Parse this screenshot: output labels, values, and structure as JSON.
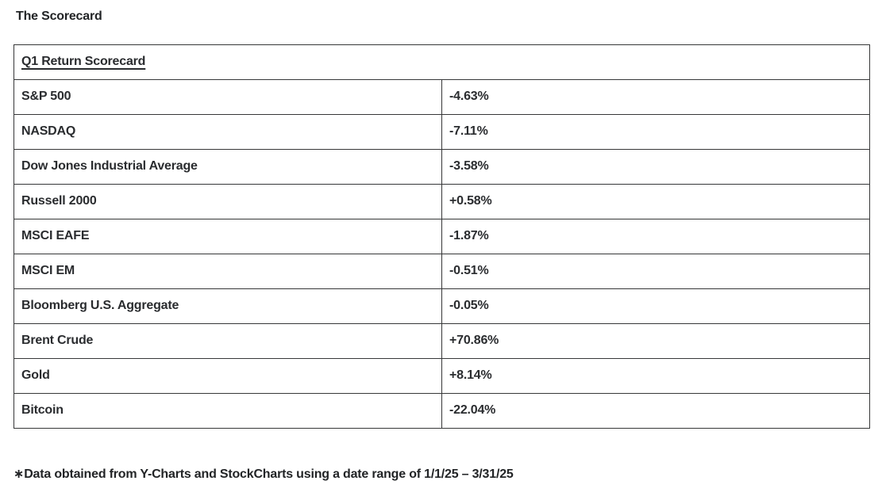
{
  "page": {
    "title": "The Scorecard"
  },
  "table": {
    "header": "Q1 Return Scorecard",
    "rows": [
      {
        "label": "S&P 500",
        "value": "-4.63%"
      },
      {
        "label": "NASDAQ",
        "value": "-7.11%"
      },
      {
        "label": "Dow Jones Industrial Average",
        "value": "-3.58%"
      },
      {
        "label": "Russell 2000",
        "value": "+0.58%"
      },
      {
        "label": "MSCI EAFE",
        "value": "-1.87%"
      },
      {
        "label": "MSCI EM",
        "value": "-0.51%"
      },
      {
        "label": "Bloomberg U.S. Aggregate",
        "value": "-0.05%"
      },
      {
        "label": "Brent Crude",
        "value": "+70.86%"
      },
      {
        "label": "Gold",
        "value": "+8.14%"
      },
      {
        "label": "Bitcoin",
        "value": "-22.04%"
      }
    ]
  },
  "footnote": "∗Data obtained from Y-Charts and StockCharts using a date range of 1/1/25 – 3/31/25",
  "colors": {
    "background": "#ffffff",
    "text": "#2a2c2f",
    "border": "#363738"
  },
  "chart_data": {
    "type": "table",
    "title": "Q1 Return Scorecard",
    "categories": [
      "S&P 500",
      "NASDAQ",
      "Dow Jones Industrial Average",
      "Russell 2000",
      "MSCI EAFE",
      "MSCI EM",
      "Bloomberg U.S. Aggregate",
      "Brent Crude",
      "Gold",
      "Bitcoin"
    ],
    "values": [
      -4.63,
      -7.11,
      -3.58,
      0.58,
      -1.87,
      -0.51,
      -0.05,
      70.86,
      8.14,
      -22.04
    ],
    "value_unit": "percent",
    "xlabel": "",
    "ylabel": "Q1 return (%)",
    "note": "Data obtained from Y-Charts and StockCharts using a date range of 1/1/25 – 3/31/25"
  }
}
